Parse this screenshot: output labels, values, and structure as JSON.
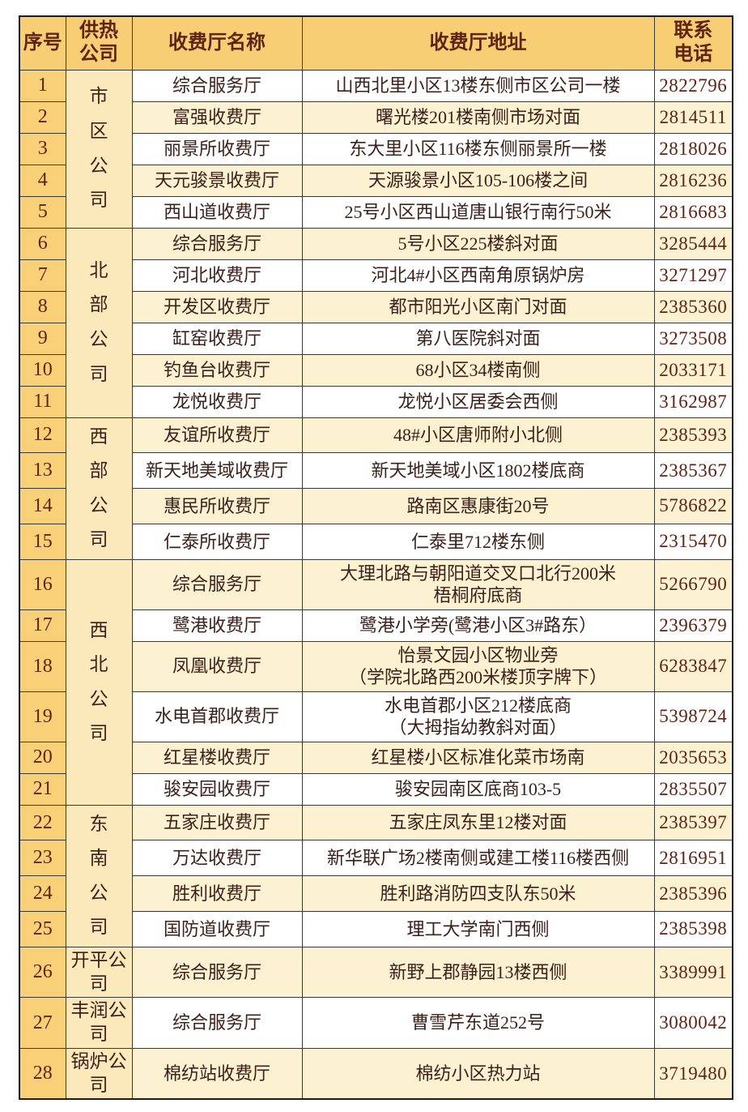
{
  "colors": {
    "header_bg": "#f7ce74",
    "index_column_bg": "#f8d077",
    "company_column_bg": "#fbe9bc",
    "stripe_row_bg": "#fcf2d1",
    "plain_row_bg": "#ffffff",
    "border": "#383838",
    "text": "#3b211a",
    "accent_text": "#5f2313"
  },
  "table": {
    "headers": [
      {
        "id": "index",
        "label": "序号"
      },
      {
        "id": "company",
        "label": "供热公司"
      },
      {
        "id": "name",
        "label": "收费厅名称"
      },
      {
        "id": "address",
        "label": "收费厅地址"
      },
      {
        "id": "phone",
        "label": "联系电话"
      }
    ],
    "groups": [
      {
        "company": "市区公司",
        "vertical": true,
        "rows": [
          {
            "index": 1,
            "name": "综合服务厅",
            "address": "山西北里小区13楼东侧市区公司一楼",
            "phone": "2822796"
          },
          {
            "index": 2,
            "name": "富强收费厅",
            "address": "曙光楼201楼南侧市场对面",
            "phone": "2814511"
          },
          {
            "index": 3,
            "name": "丽景所收费厅",
            "address": "东大里小区116楼东侧丽景所一楼",
            "phone": "2818026"
          },
          {
            "index": 4,
            "name": "天元骏景收费厅",
            "address": "天源骏景小区105-106楼之间",
            "phone": "2816236"
          },
          {
            "index": 5,
            "name": "西山道收费厅",
            "address": "25号小区西山道唐山银行南行50米",
            "phone": "2816683"
          }
        ]
      },
      {
        "company": "北部公司",
        "vertical": true,
        "rows": [
          {
            "index": 6,
            "name": "综合服务厅",
            "address": "5号小区225楼斜对面",
            "phone": "3285444"
          },
          {
            "index": 7,
            "name": "河北收费厅",
            "address": "河北4#小区西南角原锅炉房",
            "phone": "3271297"
          },
          {
            "index": 8,
            "name": "开发区收费厅",
            "address": "都市阳光小区南门对面",
            "phone": "2385360"
          },
          {
            "index": 9,
            "name": "缸窑收费厅",
            "address": "第八医院斜对面",
            "phone": "3273508"
          },
          {
            "index": 10,
            "name": "钓鱼台收费厅",
            "address": "68小区34楼南侧",
            "phone": "2033171"
          },
          {
            "index": 11,
            "name": "龙悦收费厅",
            "address": "龙悦小区居委会西侧",
            "phone": "3162987"
          }
        ]
      },
      {
        "company": "西部公司",
        "vertical": true,
        "rows": [
          {
            "index": 12,
            "name": "友谊所收费厅",
            "address": "48#小区唐师附小北侧",
            "phone": "2385393"
          },
          {
            "index": 13,
            "name": "新天地美域收费厅",
            "address": "新天地美域小区1802楼底商",
            "phone": "2385367"
          },
          {
            "index": 14,
            "name": "惠民所收费厅",
            "address": "路南区惠康街20号",
            "phone": "5786822"
          },
          {
            "index": 15,
            "name": "仁泰所收费厅",
            "address": "仁泰里712楼东侧",
            "phone": "2315470"
          }
        ]
      },
      {
        "company": "西北公司",
        "vertical": true,
        "rows": [
          {
            "index": 16,
            "name": "综合服务厅",
            "address": "大理北路与朝阳道交叉口北行200米\n梧桐府底商",
            "phone": "5266790",
            "size": "dbl"
          },
          {
            "index": 17,
            "name": "鹭港收费厅",
            "address": "鹭港小学旁(鹭港小区3#路东）",
            "phone": "2396379"
          },
          {
            "index": 18,
            "name": "凤凰收费厅",
            "address": "怡景文园小区物业旁\n（学院北路西200米楼顶字牌下）",
            "phone": "6283847",
            "size": "dbl"
          },
          {
            "index": 19,
            "name": "水电首郡收费厅",
            "address": "水电首郡小区212楼底商\n（大拇指幼教斜对面）",
            "phone": "5398724",
            "size": "dbl"
          },
          {
            "index": 20,
            "name": "红星楼收费厅",
            "address": "红星楼小区标准化菜市场南",
            "phone": "2035653"
          },
          {
            "index": 21,
            "name": "骏安园收费厅",
            "address": "骏安园南区底商103-5",
            "phone": "2835507"
          }
        ]
      },
      {
        "company": "东南公司",
        "vertical": true,
        "rows": [
          {
            "index": 22,
            "name": "五家庄收费厅",
            "address": "五家庄凤东里12楼对面",
            "phone": "2385397"
          },
          {
            "index": 23,
            "name": "万达收费厅",
            "address": "新华联广场2楼南侧或建工楼116楼西侧",
            "phone": "2816951"
          },
          {
            "index": 24,
            "name": "胜利收费厅",
            "address": "胜利路消防四支队东50米",
            "phone": "2385396"
          },
          {
            "index": 25,
            "name": "国防道收费厅",
            "address": "理工大学南门西侧",
            "phone": "2385398"
          }
        ]
      },
      {
        "company": "开平公司",
        "vertical": false,
        "rows": [
          {
            "index": 26,
            "name": "综合服务厅",
            "address": "新野上郡静园13楼西侧",
            "phone": "3389991",
            "size": "tall"
          }
        ]
      },
      {
        "company": "丰润公司",
        "vertical": false,
        "rows": [
          {
            "index": 27,
            "name": "综合服务厅",
            "address": "曹雪芹东道252号",
            "phone": "3080042",
            "size": "tall"
          }
        ]
      },
      {
        "company": "锅炉公司",
        "vertical": false,
        "rows": [
          {
            "index": 28,
            "name": "棉纺站收费厅",
            "address": "棉纺小区热力站",
            "phone": "3719480",
            "size": "tall"
          }
        ]
      }
    ]
  }
}
